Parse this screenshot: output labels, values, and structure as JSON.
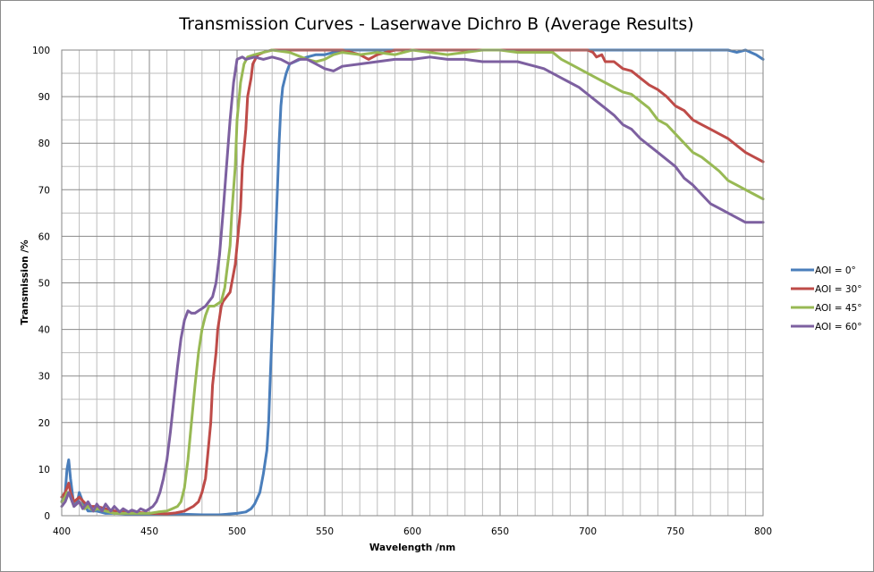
{
  "chart_data": {
    "type": "line",
    "title": "Transmission Curves - Laserwave Dichro B (Average Results)",
    "xlabel": "Wavelength /nm",
    "ylabel": "Transmission /%",
    "xlim": [
      400,
      800
    ],
    "ylim": [
      0,
      100
    ],
    "xticks": [
      "400",
      "450",
      "500",
      "550",
      "600",
      "650",
      "700",
      "750",
      "800"
    ],
    "yticks": [
      "0",
      "10",
      "20",
      "30",
      "40",
      "50",
      "60",
      "70",
      "80",
      "90",
      "100"
    ],
    "grid": true,
    "legend_position": "right",
    "series": [
      {
        "name": "AOI = 0°",
        "color": "#4a7ebb",
        "x": [
          400,
          402,
          403,
          404,
          405,
          407,
          409,
          410,
          412,
          415,
          420,
          425,
          430,
          440,
          450,
          460,
          470,
          480,
          490,
          500,
          505,
          508,
          510,
          513,
          515,
          517,
          518,
          519,
          520,
          521,
          522,
          523,
          524,
          525,
          526,
          528,
          530,
          533,
          536,
          540,
          545,
          550,
          555,
          560,
          580,
          600,
          620,
          640,
          660,
          680,
          700,
          720,
          740,
          760,
          780,
          785,
          790,
          793,
          796,
          800
        ],
        "y": [
          3,
          5,
          10,
          12,
          8,
          2,
          3,
          5,
          3,
          1,
          1,
          0.5,
          0.5,
          0.3,
          0.3,
          0.2,
          0.3,
          0.2,
          0.2,
          0.5,
          0.8,
          1.5,
          2.5,
          5,
          9,
          14,
          20,
          30,
          40,
          50,
          60,
          70,
          80,
          88,
          92,
          95,
          97,
          97.5,
          98,
          98.5,
          99,
          99,
          99.5,
          100,
          100,
          100,
          100,
          100,
          100,
          100,
          100,
          100,
          100,
          100,
          100,
          99.5,
          100,
          99.5,
          99,
          98
        ]
      },
      {
        "name": "AOI = 30°",
        "color": "#be4b48",
        "x": [
          400,
          402,
          403,
          404,
          405,
          407,
          410,
          415,
          420,
          425,
          430,
          440,
          450,
          460,
          465,
          470,
          475,
          478,
          480,
          482,
          483,
          485,
          486,
          488,
          489,
          491,
          492,
          494,
          496,
          497,
          499,
          500,
          502,
          503,
          505,
          506,
          508,
          509,
          511,
          512,
          515,
          520,
          540,
          560,
          570,
          575,
          580,
          590,
          600,
          620,
          640,
          660,
          680,
          700,
          703,
          705,
          708,
          710,
          715,
          720,
          725,
          730,
          735,
          740,
          745,
          750,
          755,
          760,
          765,
          770,
          775,
          780,
          785,
          790,
          795,
          800
        ],
        "y": [
          4,
          5,
          6,
          7,
          5,
          3,
          4,
          2,
          2,
          1.5,
          1,
          0.8,
          0.5,
          0.4,
          0.6,
          1,
          2,
          3,
          5,
          8,
          12,
          20,
          28,
          35,
          40,
          45,
          46,
          47,
          48,
          50,
          54,
          58,
          66,
          75,
          83,
          90,
          94,
          97,
          98.5,
          99,
          99.5,
          100,
          100,
          100,
          99,
          98,
          99,
          100,
          100,
          100,
          100,
          100,
          100,
          100,
          99.5,
          98.5,
          99,
          97.5,
          97.5,
          96,
          95.5,
          94,
          92.5,
          91.5,
          90,
          88,
          87,
          85,
          84,
          83,
          82,
          81,
          79.5,
          78,
          77,
          76
        ]
      },
      {
        "name": "AOI = 45°",
        "color": "#98b954",
        "x": [
          400,
          402,
          403,
          404,
          405,
          407,
          410,
          413,
          415,
          418,
          420,
          425,
          430,
          435,
          440,
          450,
          455,
          460,
          463,
          466,
          468,
          470,
          472,
          474,
          476,
          478,
          480,
          482,
          484,
          487,
          489,
          491,
          493,
          494,
          496,
          497,
          499,
          500,
          502,
          504,
          506,
          510,
          515,
          520,
          530,
          540,
          545,
          550,
          555,
          560,
          570,
          580,
          590,
          600,
          610,
          620,
          630,
          640,
          650,
          660,
          670,
          680,
          685,
          690,
          695,
          700,
          705,
          710,
          715,
          720,
          725,
          730,
          735,
          740,
          745,
          750,
          755,
          760,
          765,
          770,
          775,
          780,
          785,
          790,
          795,
          800
        ],
        "y": [
          3,
          4,
          5,
          5,
          4,
          2,
          3,
          1.5,
          2,
          1,
          1.5,
          1,
          0.5,
          0.5,
          0.5,
          0.5,
          0.8,
          1,
          1.5,
          2,
          3,
          6,
          12,
          20,
          28,
          35,
          40,
          43,
          45,
          45,
          45.5,
          46,
          49,
          52,
          58,
          65,
          75,
          85,
          93,
          97,
          98.5,
          99,
          99.5,
          100,
          99.5,
          98,
          97.5,
          98,
          99,
          99.5,
          99,
          99.5,
          99,
          100,
          99.5,
          99,
          99.5,
          100,
          100,
          99.5,
          99.5,
          99.5,
          98,
          97,
          96,
          95,
          94,
          93,
          92,
          91,
          90.5,
          89,
          87.5,
          85,
          84,
          82,
          80,
          78,
          77,
          75.5,
          74,
          72,
          71,
          70,
          69,
          68
        ]
      },
      {
        "name": "AOI = 60°",
        "color": "#7d60a0",
        "x": [
          400,
          402,
          403,
          404,
          405,
          407,
          410,
          412,
          415,
          418,
          420,
          423,
          425,
          428,
          430,
          433,
          435,
          438,
          440,
          443,
          445,
          448,
          450,
          452,
          454,
          456,
          458,
          460,
          462,
          464,
          466,
          468,
          470,
          472,
          474,
          476,
          478,
          480,
          482,
          484,
          486,
          488,
          490,
          492,
          494,
          496,
          498,
          500,
          503,
          505,
          510,
          515,
          520,
          525,
          530,
          535,
          540,
          545,
          550,
          555,
          560,
          570,
          580,
          590,
          600,
          610,
          620,
          630,
          640,
          650,
          660,
          670,
          675,
          680,
          685,
          690,
          695,
          700,
          705,
          710,
          715,
          720,
          725,
          730,
          735,
          740,
          745,
          750,
          755,
          760,
          765,
          770,
          775,
          780,
          785,
          790,
          795,
          800
        ],
        "y": [
          2,
          3,
          4,
          5,
          4,
          2,
          3,
          1.5,
          3,
          1,
          2.5,
          1,
          2.5,
          1,
          2,
          0.8,
          1.5,
          0.8,
          1.2,
          0.8,
          1.5,
          1,
          1.5,
          2,
          3,
          5,
          8,
          12,
          18,
          25,
          32,
          38,
          42,
          44,
          43.5,
          43.5,
          44,
          44.5,
          45,
          46,
          47,
          50,
          56,
          65,
          75,
          85,
          93,
          98,
          98.5,
          98,
          98.5,
          98,
          98.5,
          98,
          97,
          98,
          98,
          97,
          96,
          95.5,
          96.5,
          97,
          97.5,
          98,
          98,
          98.5,
          98,
          98,
          97.5,
          97.5,
          97.5,
          96.5,
          96,
          95,
          94,
          93,
          92,
          90.5,
          89,
          87.5,
          86,
          84,
          83,
          81,
          79.5,
          78,
          76.5,
          75,
          72.5,
          71,
          69,
          67,
          66,
          65,
          64,
          63,
          63,
          63
        ]
      }
    ]
  }
}
